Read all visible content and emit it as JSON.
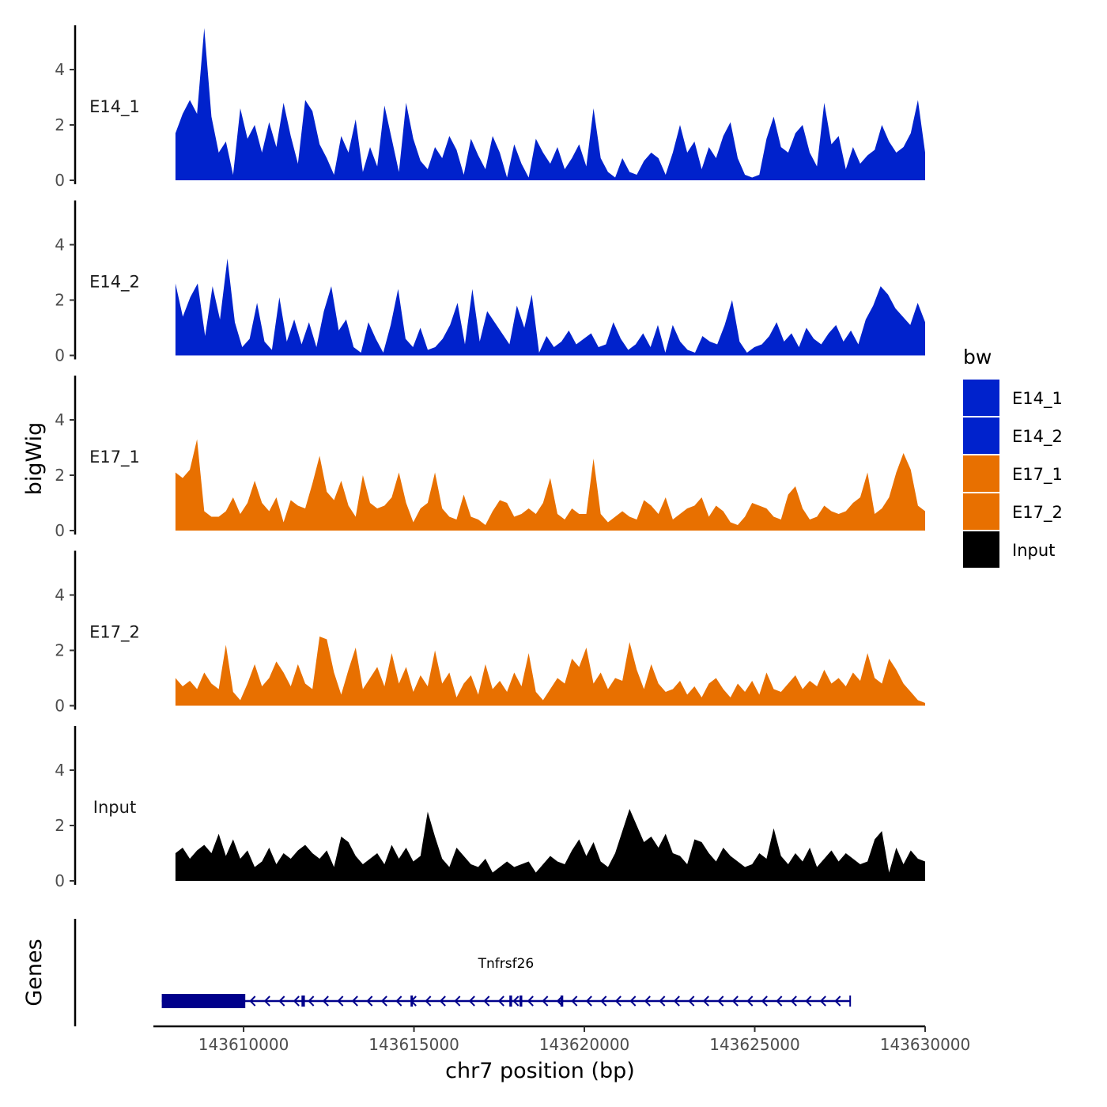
{
  "chart_data": {
    "type": "area",
    "ylabel": "bigWig",
    "xlabel": "chr7 position (bp)",
    "xlim": [
      143607400,
      143630000
    ],
    "x_ticks": [
      143610000,
      143615000,
      143620000,
      143625000,
      143630000
    ],
    "x_tick_labels": [
      "143610000",
      "143615000",
      "143620000",
      "143625000",
      "143630000"
    ],
    "ylim": [
      0,
      5.6
    ],
    "y_ticks": [
      0,
      2,
      4
    ],
    "y_tick_labels": [
      "0",
      "2",
      "4"
    ],
    "x_range_signal": [
      143608000,
      143630000
    ],
    "tracks": [
      {
        "name": "E14_1",
        "color": "#0022CC",
        "values": [
          1.7,
          2.4,
          2.9,
          2.4,
          5.5,
          2.3,
          1.0,
          1.4,
          0.2,
          2.6,
          1.5,
          2.0,
          1.0,
          2.1,
          1.2,
          2.8,
          1.6,
          0.6,
          2.9,
          2.5,
          1.3,
          0.8,
          0.2,
          1.6,
          1.0,
          2.2,
          0.3,
          1.2,
          0.5,
          2.7,
          1.5,
          0.3,
          2.8,
          1.5,
          0.7,
          0.4,
          1.2,
          0.8,
          1.6,
          1.1,
          0.2,
          1.5,
          0.9,
          0.4,
          1.6,
          1.0,
          0.1,
          1.3,
          0.6,
          0.1,
          1.5,
          1.0,
          0.6,
          1.2,
          0.4,
          0.8,
          1.3,
          0.5,
          2.6,
          0.8,
          0.3,
          0.1,
          0.8,
          0.3,
          0.2,
          0.7,
          1.0,
          0.8,
          0.2,
          1.0,
          2.0,
          1.0,
          1.4,
          0.4,
          1.2,
          0.8,
          1.6,
          2.1,
          0.8,
          0.2,
          0.1,
          0.2,
          1.5,
          2.3,
          1.2,
          1.0,
          1.7,
          2.0,
          1.0,
          0.5,
          2.8,
          1.3,
          1.6,
          0.4,
          1.2,
          0.6,
          0.9,
          1.1,
          2.0,
          1.4,
          1.0,
          1.2,
          1.7,
          2.9,
          1.0
        ]
      },
      {
        "name": "E14_2",
        "color": "#0022CC",
        "values": [
          2.6,
          1.4,
          2.1,
          2.6,
          0.7,
          2.5,
          1.3,
          3.5,
          1.2,
          0.3,
          0.6,
          1.9,
          0.5,
          0.2,
          2.1,
          0.5,
          1.3,
          0.4,
          1.2,
          0.3,
          1.6,
          2.5,
          0.9,
          1.3,
          0.3,
          0.1,
          1.2,
          0.6,
          0.1,
          1.1,
          2.4,
          0.6,
          0.3,
          1.0,
          0.2,
          0.3,
          0.6,
          1.1,
          1.9,
          0.4,
          2.4,
          0.5,
          1.6,
          1.2,
          0.8,
          0.4,
          1.8,
          1.0,
          2.2,
          0.1,
          0.7,
          0.3,
          0.5,
          0.9,
          0.4,
          0.6,
          0.8,
          0.3,
          0.4,
          1.2,
          0.6,
          0.2,
          0.4,
          0.8,
          0.3,
          1.1,
          0.1,
          1.1,
          0.5,
          0.2,
          0.1,
          0.7,
          0.5,
          0.4,
          1.1,
          2.0,
          0.5,
          0.1,
          0.3,
          0.4,
          0.7,
          1.2,
          0.5,
          0.8,
          0.3,
          1.0,
          0.6,
          0.4,
          0.8,
          1.1,
          0.5,
          0.9,
          0.4,
          1.3,
          1.8,
          2.5,
          2.2,
          1.7,
          1.4,
          1.1,
          1.9,
          1.2
        ]
      },
      {
        "name": "E17_1",
        "color": "#E87000",
        "values": [
          2.1,
          1.9,
          2.2,
          3.3,
          0.7,
          0.5,
          0.5,
          0.7,
          1.2,
          0.6,
          1.0,
          1.8,
          1.0,
          0.7,
          1.2,
          0.3,
          1.1,
          0.9,
          0.8,
          1.7,
          2.7,
          1.4,
          1.1,
          1.8,
          0.9,
          0.5,
          2.0,
          1.0,
          0.8,
          0.9,
          1.2,
          2.1,
          1.0,
          0.3,
          0.8,
          1.0,
          2.1,
          0.8,
          0.5,
          0.4,
          1.3,
          0.5,
          0.4,
          0.2,
          0.7,
          1.1,
          1.0,
          0.5,
          0.6,
          0.8,
          0.6,
          1.0,
          1.9,
          0.6,
          0.4,
          0.8,
          0.6,
          0.6,
          2.6,
          0.6,
          0.3,
          0.5,
          0.7,
          0.5,
          0.4,
          1.1,
          0.9,
          0.6,
          1.2,
          0.4,
          0.6,
          0.8,
          0.9,
          1.2,
          0.5,
          0.9,
          0.7,
          0.3,
          0.2,
          0.5,
          1.0,
          0.9,
          0.8,
          0.5,
          0.4,
          1.3,
          1.6,
          0.8,
          0.4,
          0.5,
          0.9,
          0.7,
          0.6,
          0.7,
          1.0,
          1.2,
          2.1,
          0.6,
          0.8,
          1.2,
          2.1,
          2.8,
          2.2,
          0.9,
          0.7
        ]
      },
      {
        "name": "E17_2",
        "color": "#E87000",
        "values": [
          1.0,
          0.7,
          0.9,
          0.6,
          1.2,
          0.8,
          0.6,
          2.2,
          0.5,
          0.2,
          0.8,
          1.5,
          0.7,
          1.0,
          1.6,
          1.2,
          0.7,
          1.5,
          0.8,
          0.6,
          2.5,
          2.4,
          1.2,
          0.4,
          1.3,
          2.1,
          0.6,
          1.0,
          1.4,
          0.7,
          1.9,
          0.8,
          1.4,
          0.5,
          1.1,
          0.7,
          2.0,
          0.8,
          1.2,
          0.3,
          0.8,
          1.1,
          0.4,
          1.5,
          0.6,
          0.9,
          0.5,
          1.2,
          0.7,
          1.9,
          0.5,
          0.2,
          0.6,
          1.0,
          0.8,
          1.7,
          1.4,
          2.1,
          0.8,
          1.2,
          0.6,
          1.0,
          0.9,
          2.3,
          1.3,
          0.6,
          1.5,
          0.8,
          0.5,
          0.6,
          0.9,
          0.4,
          0.7,
          0.3,
          0.8,
          1.0,
          0.6,
          0.3,
          0.8,
          0.5,
          0.9,
          0.4,
          1.2,
          0.6,
          0.5,
          0.8,
          1.1,
          0.6,
          0.9,
          0.7,
          1.3,
          0.8,
          1.0,
          0.7,
          1.2,
          0.9,
          1.9,
          1.0,
          0.8,
          1.7,
          1.3,
          0.8,
          0.5,
          0.2,
          0.1
        ]
      },
      {
        "name": "Input",
        "color": "#000000",
        "values": [
          1.0,
          1.2,
          0.8,
          1.1,
          1.3,
          1.0,
          1.7,
          0.9,
          1.5,
          0.8,
          1.1,
          0.5,
          0.7,
          1.2,
          0.6,
          1.0,
          0.8,
          1.1,
          1.3,
          1.0,
          0.8,
          1.1,
          0.5,
          1.6,
          1.4,
          0.9,
          0.6,
          0.8,
          1.0,
          0.6,
          1.3,
          0.8,
          1.2,
          0.7,
          0.9,
          2.5,
          1.6,
          0.8,
          0.5,
          1.2,
          0.9,
          0.6,
          0.5,
          0.8,
          0.3,
          0.5,
          0.7,
          0.5,
          0.6,
          0.7,
          0.3,
          0.6,
          0.9,
          0.7,
          0.6,
          1.1,
          1.5,
          0.9,
          1.4,
          0.7,
          0.5,
          1.0,
          1.8,
          2.6,
          2.0,
          1.4,
          1.6,
          1.2,
          1.7,
          1.0,
          0.9,
          0.6,
          1.5,
          1.4,
          1.0,
          0.7,
          1.2,
          0.9,
          0.7,
          0.5,
          0.6,
          1.0,
          0.8,
          1.9,
          0.9,
          0.6,
          1.0,
          0.7,
          1.2,
          0.5,
          0.8,
          1.1,
          0.7,
          1.0,
          0.8,
          0.6,
          0.7,
          1.5,
          1.8,
          0.3,
          1.2,
          0.6,
          1.1,
          0.8,
          0.7
        ]
      }
    ],
    "legend": {
      "title": "bw",
      "entries": [
        {
          "label": "E14_1",
          "color": "#0022CC"
        },
        {
          "label": "E14_2",
          "color": "#0022CC"
        },
        {
          "label": "E17_1",
          "color": "#E87000"
        },
        {
          "label": "E17_2",
          "color": "#E87000"
        },
        {
          "label": "Input",
          "color": "#000000"
        }
      ]
    },
    "genes_panel": {
      "label": "Genes",
      "gene": {
        "name": "Tnfrsf26",
        "start": 143607600,
        "end": 143627800,
        "strand": "-",
        "color": "#00008B",
        "exons": [
          [
            143607600,
            143610050
          ],
          [
            143611700,
            143611800
          ],
          [
            143617800,
            143617880
          ],
          [
            143618100,
            143618180
          ],
          [
            143619300,
            143619380
          ],
          [
            143614900,
            143614960
          ]
        ]
      }
    }
  }
}
